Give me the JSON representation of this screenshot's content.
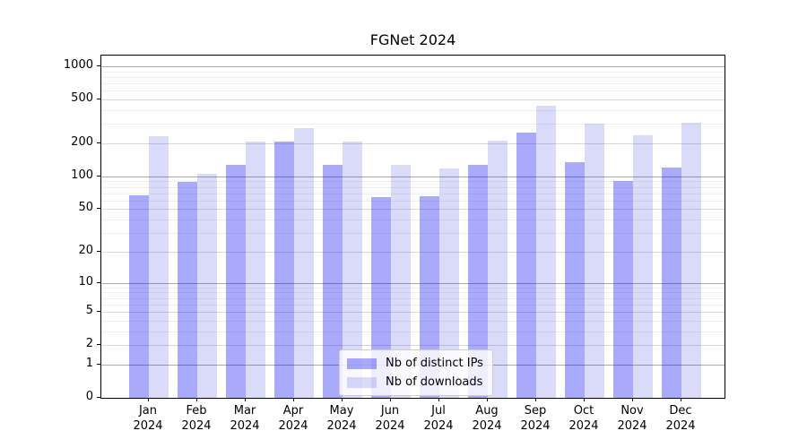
{
  "chart_data": {
    "type": "bar",
    "title": "FGNet 2024",
    "categories": [
      "Jan",
      "Feb",
      "Mar",
      "Apr",
      "May",
      "Jun",
      "Jul",
      "Aug",
      "Sep",
      "Oct",
      "Nov",
      "Dec"
    ],
    "category_year": "2024",
    "series": [
      {
        "name": "Nb of distinct IPs",
        "color": "rgba(0,0,240,0.335)",
        "color_hex_on_white": "#aaaafa",
        "values": [
          67,
          89,
          128,
          207,
          128,
          65,
          66,
          128,
          250,
          135,
          91,
          120
        ]
      },
      {
        "name": "Nb of downloads",
        "color": "rgba(0,0,215,0.145)",
        "color_hex_on_white": "#dadaf9",
        "values": [
          232,
          106,
          207,
          275,
          207,
          128,
          118,
          212,
          440,
          302,
          237,
          308
        ]
      }
    ],
    "xlabel": "",
    "ylabel": "",
    "yscale": "symlog (log1p)",
    "ylim": [
      0,
      1252
    ],
    "yticks": [
      0,
      1,
      2,
      5,
      10,
      20,
      50,
      100,
      200,
      500,
      1000
    ],
    "grid": "on (major + minor horizontal)",
    "legend_position": "lower center"
  }
}
